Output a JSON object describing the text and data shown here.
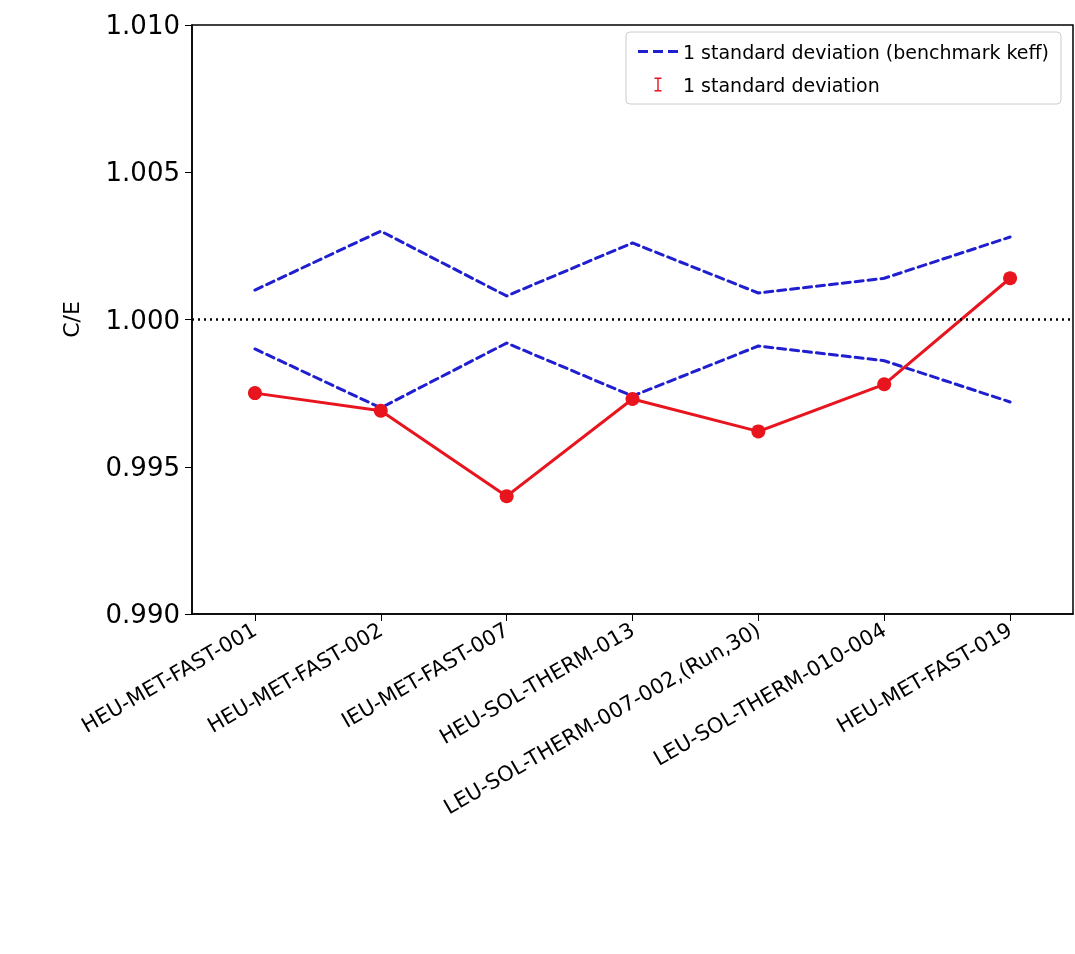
{
  "chart_data": {
    "type": "line",
    "ylabel": "C/E",
    "categories": [
      "HEU-MET-FAST-001",
      "HEU-MET-FAST-002",
      "IEU-MET-FAST-007",
      "HEU-SOL-THERM-013",
      "LEU-SOL-THERM-007-002,(Run,30)",
      "LEU-SOL-THERM-010-004",
      "HEU-MET-FAST-019"
    ],
    "series": [
      {
        "name": "1 standard deviation (benchmark keff)",
        "color": "#1f1fd0",
        "line_style": "dashed",
        "marker": "none",
        "values": [
          1.001,
          1.003,
          1.0008,
          1.0026,
          1.0009,
          1.0014,
          1.0028
        ]
      },
      {
        "color": "#1f1fd0",
        "line_style": "dashed",
        "marker": "none",
        "values": [
          0.999,
          0.997,
          0.9992,
          0.9974,
          0.9991,
          0.9986,
          0.9972
        ]
      },
      {
        "name": "1 standard deviation",
        "color": "#e8141e",
        "line_style": "solid",
        "marker": "circle",
        "values": [
          0.9975,
          0.9969,
          0.994,
          0.9973,
          0.9962,
          0.9978,
          1.0014
        ]
      }
    ],
    "ylim": [
      0.99,
      1.01
    ],
    "yticks": [
      {
        "value": 0.99,
        "label": "0.990"
      },
      {
        "value": 0.995,
        "label": "0.995"
      },
      {
        "value": 1.0,
        "label": "1.000"
      },
      {
        "value": 1.005,
        "label": "1.005"
      },
      {
        "value": 1.01,
        "label": "1.010"
      }
    ],
    "ref_lines": [
      {
        "axis": "y",
        "value": 1.0,
        "color": "#000000",
        "line_style": "dotted"
      }
    ],
    "grid": false,
    "legend": "top right"
  }
}
